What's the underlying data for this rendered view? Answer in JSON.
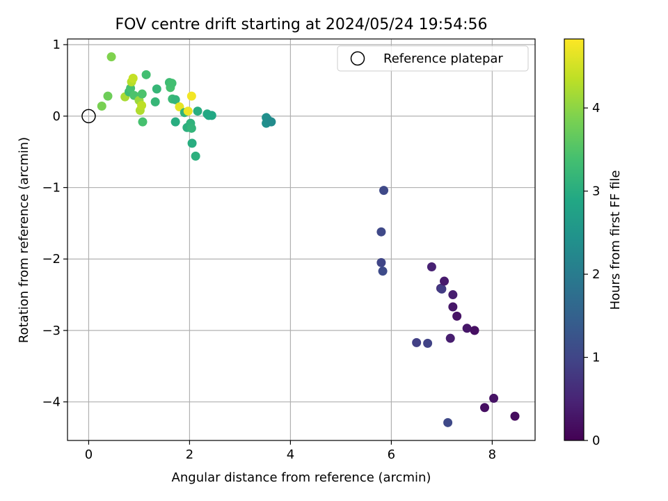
{
  "chart_data": {
    "type": "scatter",
    "title": "FOV centre drift starting at 2024/05/24 19:54:56",
    "xlabel": "Angular distance from reference (arcmin)",
    "ylabel": "Rotation from reference (arcmin)",
    "xlim": [
      -0.42,
      8.85
    ],
    "ylim": [
      -4.54,
      1.08
    ],
    "xticks": [
      0,
      2,
      4,
      6,
      8
    ],
    "yticks": [
      1,
      0,
      -1,
      -2,
      -3,
      -4
    ],
    "xtick_labels": [
      "0",
      "2",
      "4",
      "6",
      "8"
    ],
    "ytick_labels": [
      "1",
      "0",
      "−1",
      "−2",
      "−3",
      "−4"
    ],
    "grid": true,
    "legend": {
      "position": "top-right",
      "label": "Reference platepar"
    },
    "reference_point": {
      "x": 0,
      "y": 0
    },
    "colorbar": {
      "label": "Hours from first FF file",
      "colormap": "viridis",
      "min": 0,
      "max": 4.83,
      "ticks": [
        0,
        1,
        2,
        3,
        4
      ],
      "tick_labels": [
        "0",
        "1",
        "2",
        "3",
        "4"
      ]
    },
    "points": [
      {
        "x": 0.26,
        "y": 0.14,
        "c": 3.85
      },
      {
        "x": 0.38,
        "y": 0.28,
        "c": 3.75
      },
      {
        "x": 0.45,
        "y": 0.83,
        "c": 3.9
      },
      {
        "x": 0.72,
        "y": 0.27,
        "c": 4.2
      },
      {
        "x": 0.8,
        "y": 0.34,
        "c": 3.3
      },
      {
        "x": 0.83,
        "y": 0.39,
        "c": 3.4
      },
      {
        "x": 0.85,
        "y": 0.48,
        "c": 4.3
      },
      {
        "x": 0.88,
        "y": 0.53,
        "c": 4.4
      },
      {
        "x": 0.9,
        "y": 0.29,
        "c": 3.45
      },
      {
        "x": 1.0,
        "y": 0.22,
        "c": 4.1
      },
      {
        "x": 1.02,
        "y": 0.08,
        "c": 4.25
      },
      {
        "x": 1.05,
        "y": 0.15,
        "c": 4.35
      },
      {
        "x": 1.06,
        "y": 0.31,
        "c": 3.45
      },
      {
        "x": 1.07,
        "y": -0.08,
        "c": 3.4
      },
      {
        "x": 1.14,
        "y": 0.58,
        "c": 3.35
      },
      {
        "x": 1.32,
        "y": 0.2,
        "c": 3.2
      },
      {
        "x": 1.35,
        "y": 0.38,
        "c": 3.2
      },
      {
        "x": 1.6,
        "y": 0.47,
        "c": 3.3
      },
      {
        "x": 1.62,
        "y": 0.4,
        "c": 3.4
      },
      {
        "x": 1.65,
        "y": 0.46,
        "c": 3.35
      },
      {
        "x": 1.66,
        "y": 0.24,
        "c": 3.25
      },
      {
        "x": 1.72,
        "y": 0.23,
        "c": 3.15
      },
      {
        "x": 1.72,
        "y": -0.08,
        "c": 3.0
      },
      {
        "x": 1.8,
        "y": 0.13,
        "c": 4.65
      },
      {
        "x": 1.9,
        "y": 0.05,
        "c": 3.1
      },
      {
        "x": 1.95,
        "y": -0.16,
        "c": 3.05
      },
      {
        "x": 1.97,
        "y": 0.07,
        "c": 4.7
      },
      {
        "x": 2.02,
        "y": -0.1,
        "c": 3.1
      },
      {
        "x": 2.04,
        "y": 0.28,
        "c": 4.75
      },
      {
        "x": 2.04,
        "y": -0.17,
        "c": 3.15
      },
      {
        "x": 2.05,
        "y": -0.38,
        "c": 3.0
      },
      {
        "x": 2.12,
        "y": -0.56,
        "c": 3.05
      },
      {
        "x": 2.16,
        "y": 0.07,
        "c": 3.0
      },
      {
        "x": 2.35,
        "y": 0.03,
        "c": 2.95
      },
      {
        "x": 2.38,
        "y": 0.01,
        "c": 2.9
      },
      {
        "x": 2.44,
        "y": 0.01,
        "c": 2.9
      },
      {
        "x": 3.52,
        "y": -0.02,
        "c": 2.4
      },
      {
        "x": 3.52,
        "y": -0.1,
        "c": 2.4
      },
      {
        "x": 3.55,
        "y": -0.05,
        "c": 2.35
      },
      {
        "x": 3.62,
        "y": -0.08,
        "c": 2.3
      },
      {
        "x": 5.85,
        "y": -1.04,
        "c": 1.05
      },
      {
        "x": 5.8,
        "y": -1.62,
        "c": 1.05
      },
      {
        "x": 5.8,
        "y": -2.05,
        "c": 1.0
      },
      {
        "x": 5.83,
        "y": -2.17,
        "c": 1.1
      },
      {
        "x": 6.8,
        "y": -2.11,
        "c": 0.45
      },
      {
        "x": 6.98,
        "y": -2.41,
        "c": 0.65
      },
      {
        "x": 7.0,
        "y": -2.42,
        "c": 0.85
      },
      {
        "x": 7.05,
        "y": -2.31,
        "c": 0.35
      },
      {
        "x": 7.22,
        "y": -2.5,
        "c": 0.4
      },
      {
        "x": 7.22,
        "y": -2.67,
        "c": 0.3
      },
      {
        "x": 7.3,
        "y": -2.8,
        "c": 0.25
      },
      {
        "x": 7.5,
        "y": -2.97,
        "c": 0.3
      },
      {
        "x": 7.65,
        "y": -3.0,
        "c": 0.2
      },
      {
        "x": 7.17,
        "y": -3.11,
        "c": 0.4
      },
      {
        "x": 6.5,
        "y": -3.17,
        "c": 0.9
      },
      {
        "x": 6.72,
        "y": -3.18,
        "c": 0.95
      },
      {
        "x": 7.12,
        "y": -4.29,
        "c": 1.05
      },
      {
        "x": 7.85,
        "y": -4.08,
        "c": 0.2
      },
      {
        "x": 8.03,
        "y": -3.95,
        "c": 0.25
      },
      {
        "x": 8.45,
        "y": -4.2,
        "c": 0.15
      }
    ]
  }
}
